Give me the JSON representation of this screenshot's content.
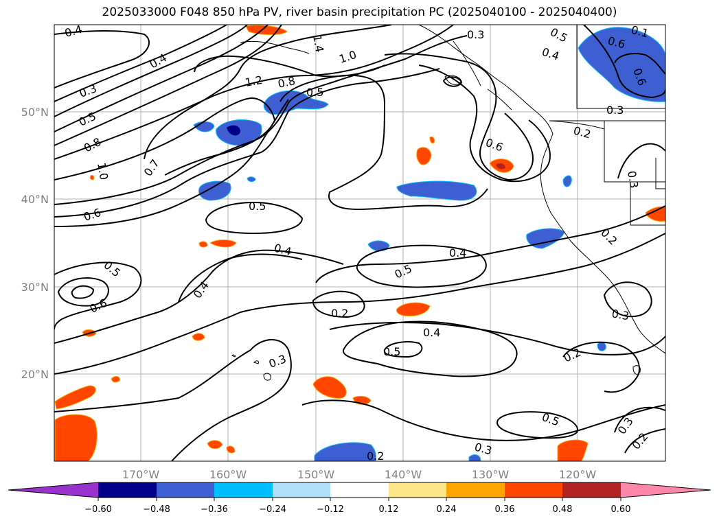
{
  "title": "2025033000 F048 850 hPa PV, river basin precipitation PC (2025040100 - 2025040400)",
  "lat_labels": [
    "50°N",
    "40°N",
    "30°N",
    "20°N"
  ],
  "lon_labels": [
    "170°W",
    "160°W",
    "150°W",
    "140°W",
    "130°W",
    "120°W"
  ],
  "contour_labels": [
    "0.4",
    "0.4",
    "0.3",
    "0.5",
    "0.8",
    "1.0",
    "0.7",
    "0.6",
    "1.2",
    "0.8",
    "0.5",
    "1.4",
    "1.0",
    "0.3",
    "0.5",
    "0.4",
    "0.1",
    "0.6",
    "0.6",
    "0.3",
    "0.2",
    "0.6",
    "0.3",
    "0.2",
    "0.5",
    "0.4",
    "0.5",
    "0.6",
    "0.4",
    "0.4",
    "0.5",
    "0.2",
    "0.4",
    "0.5",
    "0.3",
    "0.2",
    "0.3",
    "0.5",
    "0.3",
    "0.3",
    "0.2",
    "0.2"
  ],
  "colorbar": {
    "ticks": [
      "−0.60",
      "−0.48",
      "−0.36",
      "−0.24",
      "−0.12",
      "0.12",
      "0.24",
      "0.36",
      "0.48",
      "0.60"
    ],
    "colors": [
      "#9932cc",
      "#00008b",
      "#3d5fd1",
      "#00bfff",
      "#b0e0f8",
      "#ffffff",
      "#fde68a",
      "#ffa500",
      "#ff4500",
      "#b22222",
      "#ff88aa"
    ]
  }
}
